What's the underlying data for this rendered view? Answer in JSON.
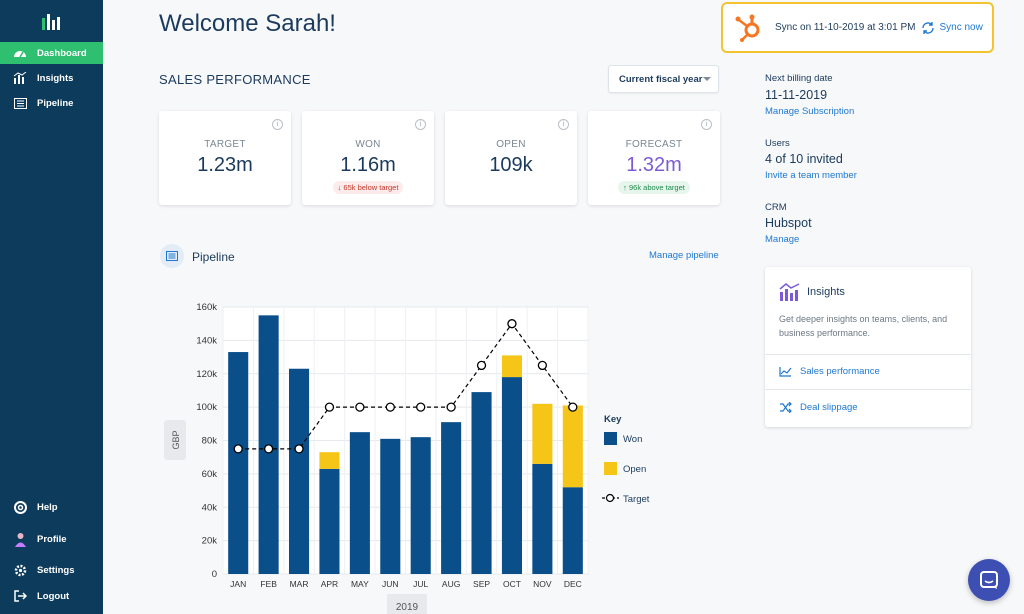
{
  "sidebar": {
    "top_items": [
      {
        "label": "Dashboard",
        "icon": "dashboard-icon",
        "active": true
      },
      {
        "label": "Insights",
        "icon": "insights-icon",
        "active": false
      },
      {
        "label": "Pipeline",
        "icon": "pipeline-icon",
        "active": false
      }
    ],
    "bottom_items": [
      {
        "label": "Help",
        "icon": "help-icon"
      },
      {
        "label": "Profile",
        "icon": "profile-icon"
      },
      {
        "label": "Settings",
        "icon": "settings-icon"
      },
      {
        "label": "Logout",
        "icon": "logout-icon"
      }
    ]
  },
  "header": {
    "welcome": "Welcome Sarah!",
    "sync_text": "Sync on 11-10-2019 at 3:01 PM",
    "sync_now": "Sync now"
  },
  "sales": {
    "title": "SALES PERFORMANCE",
    "period": "Current fiscal year",
    "kpis": [
      {
        "label": "TARGET",
        "value": "1.23m",
        "note": "",
        "note_type": ""
      },
      {
        "label": "WON",
        "value": "1.16m",
        "note": "↓ 65k below target",
        "note_type": "red"
      },
      {
        "label": "OPEN",
        "value": "109k",
        "note": "",
        "note_type": ""
      },
      {
        "label": "FORECAST",
        "value": "1.32m",
        "note": "↑ 96k above target",
        "note_type": "green"
      }
    ]
  },
  "pipeline": {
    "title": "Pipeline",
    "manage": "Manage pipeline"
  },
  "chart_data": {
    "type": "bar",
    "stacked": true,
    "categories": [
      "JAN",
      "FEB",
      "MAR",
      "APR",
      "MAY",
      "JUN",
      "JUL",
      "AUG",
      "SEP",
      "OCT",
      "NOV",
      "DEC"
    ],
    "series": [
      {
        "name": "Won",
        "color": "#0b4f8a",
        "values": [
          133,
          155,
          123,
          63,
          85,
          81,
          82,
          91,
          109,
          118,
          66,
          52
        ]
      },
      {
        "name": "Open",
        "color": "#f5c518",
        "values": [
          0,
          0,
          0,
          10,
          0,
          0,
          0,
          0,
          0,
          13,
          36,
          49
        ]
      },
      {
        "name": "Target",
        "type": "line",
        "color": "#000000",
        "values": [
          75,
          75,
          75,
          100,
          100,
          100,
          100,
          100,
          125,
          150,
          125,
          100
        ]
      }
    ],
    "ylabel": "GBP",
    "xlabel": "2019",
    "ylim": [
      0,
      160
    ],
    "yticks": [
      "0",
      "20k",
      "40k",
      "60k",
      "80k",
      "100k",
      "120k",
      "140k",
      "160k"
    ],
    "legend_title": "Key",
    "legend_position": "right",
    "grid": true
  },
  "right": {
    "billing_label": "Next billing date",
    "billing_value": "11-11-2019",
    "billing_link": "Manage Subscription",
    "users_label": "Users",
    "users_value": "4 of 10 invited",
    "users_link": "Invite a team member",
    "crm_label": "CRM",
    "crm_value": "Hubspot",
    "crm_link": "Manage"
  },
  "insights_card": {
    "title": "Insights",
    "description": "Get deeper insights on teams, clients, and business performance.",
    "links": [
      "Sales performance",
      "Deal slippage"
    ]
  }
}
